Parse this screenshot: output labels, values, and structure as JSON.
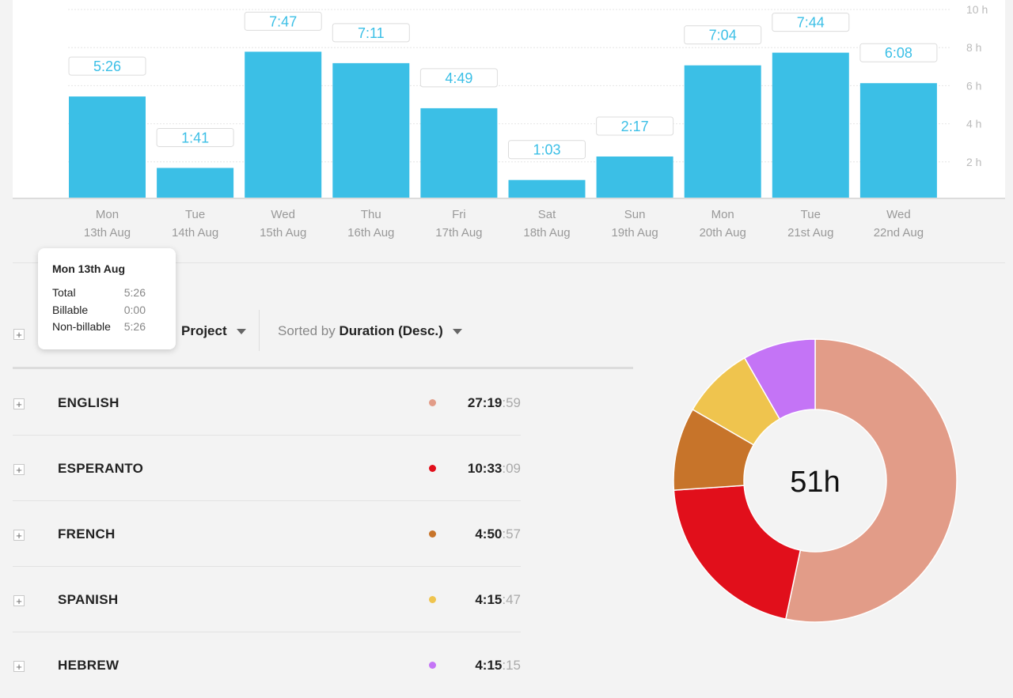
{
  "chart_data": {
    "type": "bar",
    "categories": [
      [
        "Mon",
        "13th Aug"
      ],
      [
        "Tue",
        "14th Aug"
      ],
      [
        "Wed",
        "15th Aug"
      ],
      [
        "Thu",
        "16th Aug"
      ],
      [
        "Fri",
        "17th Aug"
      ],
      [
        "Sat",
        "18th Aug"
      ],
      [
        "Sun",
        "19th Aug"
      ],
      [
        "Mon",
        "20th Aug"
      ],
      [
        "Tue",
        "21st Aug"
      ],
      [
        "Wed",
        "22nd Aug"
      ]
    ],
    "values": [
      5.433,
      1.683,
      7.783,
      7.183,
      4.817,
      1.05,
      2.283,
      7.067,
      7.733,
      6.133
    ],
    "labels": [
      "5:26",
      "1:41",
      "7:47",
      "7:11",
      "4:49",
      "1:03",
      "2:17",
      "7:04",
      "7:44",
      "6:08"
    ],
    "ylim": [
      0,
      10
    ],
    "yticks": [
      "2 h",
      "4 h",
      "6 h",
      "8 h",
      "10 h"
    ],
    "bar_color": "#3bbfe6",
    "grid": true
  },
  "tooltip": {
    "title": "Mon 13th Aug",
    "rows": [
      {
        "label": "Total",
        "value": "5:26"
      },
      {
        "label": "Billable",
        "value": "0:00"
      },
      {
        "label": "Non-billable",
        "value": "5:26"
      }
    ]
  },
  "controls": {
    "group_label": "Project",
    "sort_prefix": "Sorted by",
    "sort_value": "Duration (Desc.)",
    "plus_icon": "+"
  },
  "projects": [
    {
      "name": "ENGLISH",
      "main": "27:19",
      "sec": ":59",
      "color": "#e29c88"
    },
    {
      "name": "ESPERANTO",
      "main": "10:33",
      "sec": ":09",
      "color": "#e10f1b"
    },
    {
      "name": "FRENCH",
      "main": "4:50",
      "sec": ":57",
      "color": "#c7742a"
    },
    {
      "name": "SPANISH",
      "main": "4:15",
      "sec": ":47",
      "color": "#efc44e"
    },
    {
      "name": "HEBREW",
      "main": "4:15",
      "sec": ":15",
      "color": "#c474f6"
    }
  ],
  "donut": {
    "type": "pie",
    "center_label": "51h",
    "values": [
      27.333,
      10.553,
      4.849,
      4.263,
      4.254
    ],
    "colors": [
      "#e29c88",
      "#e10f1b",
      "#c7742a",
      "#efc44e",
      "#c474f6"
    ]
  }
}
